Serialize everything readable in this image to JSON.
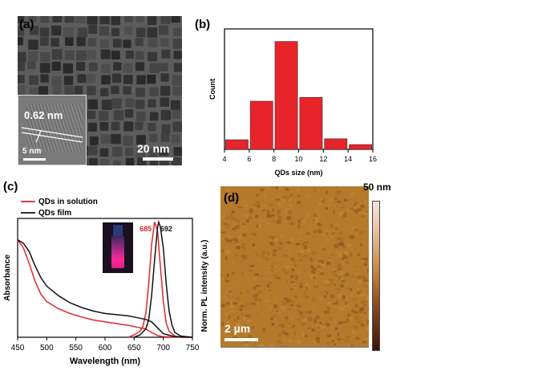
{
  "panels": {
    "a": {
      "label": "(a)",
      "lattice_label": "0.62 nm",
      "inset_scale_label": "5 nm",
      "main_scale_label": "20 nm"
    },
    "b": {
      "label": "(b)"
    },
    "c": {
      "label": "(c)",
      "inset_peak_solution": "685",
      "inset_peak_film": "692"
    },
    "d": {
      "label": "(d)",
      "scale_label": "2 µm",
      "colorbar_max": "50 nm"
    }
  },
  "chart_data": [
    {
      "type": "bar",
      "panel": "b",
      "xlabel": "QDs size (nm)",
      "ylabel": "Count",
      "categories": [
        5,
        7,
        9,
        11,
        13,
        15
      ],
      "values": [
        1,
        5,
        11.2,
        5.4,
        1.1,
        0.5
      ],
      "xticks": [
        "4",
        "6",
        "8",
        "10",
        "12",
        "14",
        "16"
      ],
      "xlim": [
        4,
        16
      ],
      "ylim": [
        0,
        12.5
      ],
      "color": "#e8242b"
    },
    {
      "type": "line",
      "panel": "c",
      "xlabel": "Wavelength (nm)",
      "ylabel_left": "Absorbance",
      "ylabel_right": "Norm. PL intensity (a.u.)",
      "xticks": [
        "450",
        "500",
        "550",
        "600",
        "650",
        "700",
        "750"
      ],
      "xlim": [
        450,
        750
      ],
      "ylim": [
        0,
        1
      ],
      "legend": [
        "QDs in solution",
        "QDs film"
      ],
      "series": [
        {
          "name": "QDs in solution",
          "color": "#e0262a",
          "absorbance": {
            "x": [
              450,
              460,
              470,
              480,
              490,
              500,
              520,
              540,
              560,
              580,
              600,
              620,
              640,
              650,
              660,
              670,
              680,
              690,
              700,
              720,
              750
            ],
            "y": [
              0.82,
              0.75,
              0.62,
              0.47,
              0.36,
              0.3,
              0.24,
              0.2,
              0.17,
              0.145,
              0.13,
              0.115,
              0.1,
              0.09,
              0.08,
              0.07,
              0.04,
              0.015,
              0.005,
              0.002,
              0.0
            ]
          },
          "pl": {
            "x": [
              640,
              650,
              660,
              665,
              670,
              675,
              680,
              685,
              690,
              695,
              700,
              705,
              710,
              720,
              730,
              750
            ],
            "y": [
              0.0,
              0.02,
              0.05,
              0.09,
              0.2,
              0.45,
              0.78,
              0.97,
              0.9,
              0.6,
              0.3,
              0.12,
              0.05,
              0.01,
              0.0,
              0.0
            ]
          }
        },
        {
          "name": "QDs film",
          "color": "#111111",
          "absorbance": {
            "x": [
              450,
              460,
              470,
              480,
              490,
              500,
              520,
              540,
              560,
              580,
              600,
              620,
              640,
              650,
              660,
              670,
              680,
              690,
              700,
              720,
              750
            ],
            "y": [
              0.82,
              0.79,
              0.72,
              0.6,
              0.5,
              0.43,
              0.35,
              0.29,
              0.25,
              0.22,
              0.2,
              0.19,
              0.18,
              0.17,
              0.16,
              0.15,
              0.13,
              0.08,
              0.03,
              0.005,
              0.0
            ]
          },
          "pl": {
            "x": [
              650,
              660,
              670,
              675,
              680,
              685,
              690,
              692,
              695,
              700,
              705,
              710,
              715,
              720,
              730,
              750
            ],
            "y": [
              0.0,
              0.02,
              0.07,
              0.15,
              0.35,
              0.65,
              0.92,
              0.97,
              0.93,
              0.75,
              0.45,
              0.22,
              0.1,
              0.04,
              0.01,
              0.0
            ]
          }
        }
      ]
    }
  ]
}
